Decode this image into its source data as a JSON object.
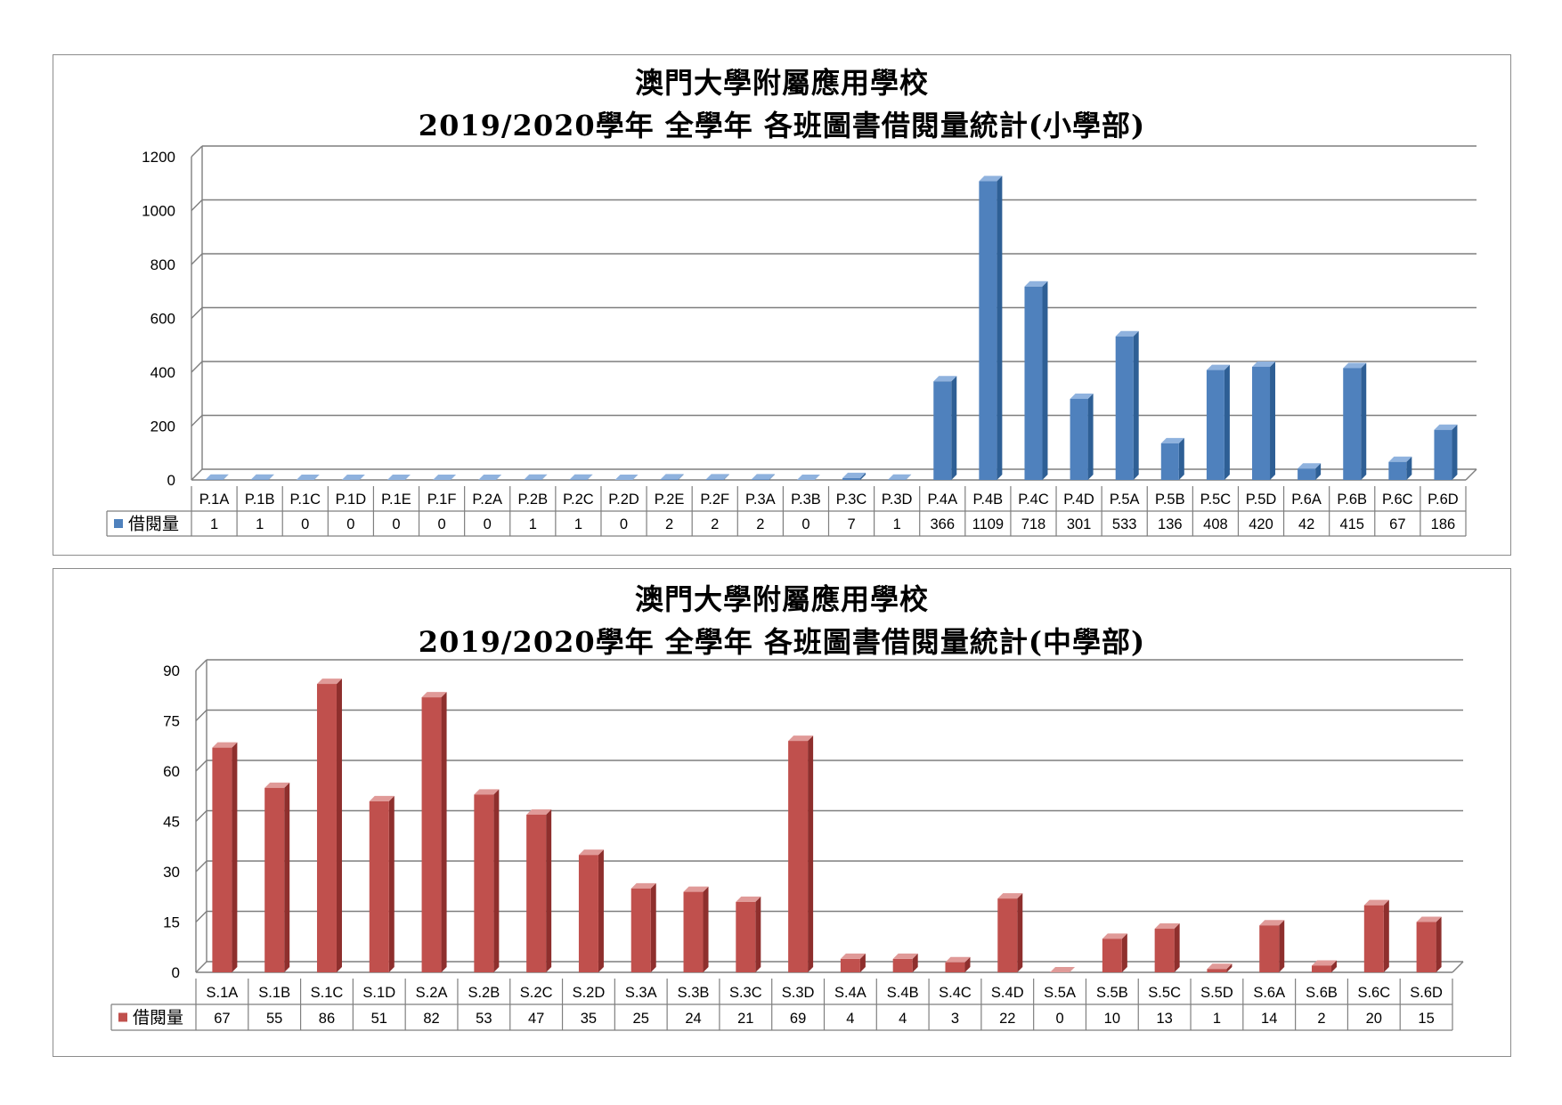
{
  "charts": [
    {
      "id": "primary",
      "title_line1": "澳門大學附屬應用學校",
      "title_line2": "2019/2020學年  全學年  各班圖書借閱量統計(小學部)",
      "legend_label": "借閱量",
      "colors": {
        "front": "#4f81bd",
        "side": "#2e5f95",
        "top": "#8fb2de"
      }
    },
    {
      "id": "secondary",
      "title_line1": "澳門大學附屬應用學校",
      "title_line2": "2019/2020學年  全學年  各班圖書借閱量統計(中學部)",
      "legend_label": "借閱量",
      "colors": {
        "front": "#c0504d",
        "side": "#8e2f2d",
        "top": "#e09a98"
      }
    }
  ],
  "chart_data": [
    {
      "type": "bar",
      "title": "澳門大學附屬應用學校 2019/2020學年 全學年 各班圖書借閱量統計(小學部)",
      "categories": [
        "P.1A",
        "P.1B",
        "P.1C",
        "P.1D",
        "P.1E",
        "P.1F",
        "P.2A",
        "P.2B",
        "P.2C",
        "P.2D",
        "P.2E",
        "P.2F",
        "P.3A",
        "P.3B",
        "P.3C",
        "P.3D",
        "P.4A",
        "P.4B",
        "P.4C",
        "P.4D",
        "P.5A",
        "P.5B",
        "P.5C",
        "P.5D",
        "P.6A",
        "P.6B",
        "P.6C",
        "P.6D"
      ],
      "series": [
        {
          "name": "借閱量",
          "values": [
            1,
            1,
            0,
            0,
            0,
            0,
            0,
            1,
            1,
            0,
            2,
            2,
            2,
            0,
            7,
            1,
            366,
            1109,
            718,
            301,
            533,
            136,
            408,
            420,
            42,
            415,
            67,
            186
          ]
        }
      ],
      "ylim": [
        0,
        1200
      ],
      "yticks": [
        0,
        200,
        400,
        600,
        800,
        1000,
        1200
      ],
      "grid": true,
      "legend": "data-table-left"
    },
    {
      "type": "bar",
      "title": "澳門大學附屬應用學校 2019/2020學年 全學年 各班圖書借閱量統計(中學部)",
      "categories": [
        "S.1A",
        "S.1B",
        "S.1C",
        "S.1D",
        "S.2A",
        "S.2B",
        "S.2C",
        "S.2D",
        "S.3A",
        "S.3B",
        "S.3C",
        "S.3D",
        "S.4A",
        "S.4B",
        "S.4C",
        "S.4D",
        "S.5A",
        "S.5B",
        "S.5C",
        "S.5D",
        "S.6A",
        "S.6B",
        "S.6C",
        "S.6D"
      ],
      "series": [
        {
          "name": "借閱量",
          "values": [
            67,
            55,
            86,
            51,
            82,
            53,
            47,
            35,
            25,
            24,
            21,
            69,
            4,
            4,
            3,
            22,
            0,
            10,
            13,
            1,
            14,
            2,
            20,
            15
          ]
        }
      ],
      "ylim": [
        0,
        90
      ],
      "yticks": [
        0,
        15,
        30,
        45,
        60,
        75,
        90
      ],
      "grid": true,
      "legend": "data-table-left"
    }
  ]
}
